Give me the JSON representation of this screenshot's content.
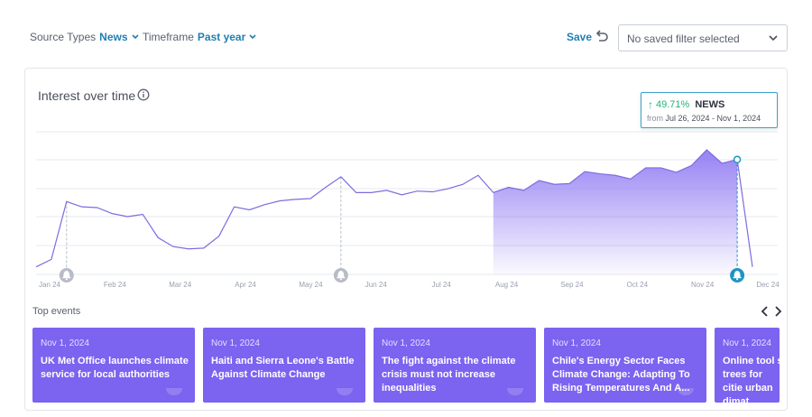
{
  "filters": {
    "source_types": {
      "label": "Source Types",
      "value": "News"
    },
    "timeframe": {
      "label": "Timeframe",
      "value": "Past year"
    }
  },
  "actions": {
    "save_label": "Save",
    "saved_filter_value": "No saved filter selected"
  },
  "card": {
    "title": "Interest over time"
  },
  "tooltip": {
    "change": "49.71%",
    "series": "NEWS",
    "from_label": "from",
    "date_range": "Jul 26, 2024 - Nov 1, 2024",
    "color": "#22b37a"
  },
  "colors": {
    "accent": "#1f7fb3",
    "line": "#7c6ce0",
    "area": "#8b73f2",
    "event_card": "#7c63f0",
    "alert_active": "#1f94c4",
    "alert_inactive": "#b7bcc6"
  },
  "chart_data": {
    "type": "line",
    "series": [
      {
        "name": "NEWS",
        "values": [
          10,
          20,
          97,
          90,
          89,
          81,
          77,
          80,
          49,
          37,
          34,
          35,
          51,
          90,
          86,
          93,
          98,
          100,
          101,
          116,
          130,
          109,
          109,
          112,
          106,
          111,
          110,
          114,
          120,
          132,
          109,
          116,
          112,
          125,
          120,
          121,
          137,
          134,
          132,
          127,
          142,
          142,
          136,
          145,
          166,
          148,
          153,
          10
        ]
      }
    ],
    "x_tick_labels": [
      "Jan 24",
      "Feb 24",
      "Mar 24",
      "Apr 24",
      "May 24",
      "Jun 24",
      "Jul 24",
      "Aug 24",
      "Sep 24",
      "Oct 24",
      "Nov 24",
      "Dec 24"
    ],
    "highlight_range": [
      "Jul 26, 2024",
      "Nov 1, 2024"
    ],
    "highlight_start_index": 30,
    "highlight_end_index": 46,
    "selected_index": 46,
    "alerts": [
      {
        "label": "Jan 24",
        "index": 2,
        "active": false
      },
      {
        "label": "May 24",
        "index": 20,
        "active": false
      },
      {
        "label": "Nov 24",
        "index": 46,
        "active": true
      }
    ],
    "grid": true,
    "ylim": [
      0,
      190
    ]
  },
  "events": {
    "heading": "Top events",
    "items": [
      {
        "date": "Nov 1, 2024",
        "title": "UK Met Office launches climate service for local authorities"
      },
      {
        "date": "Nov 1, 2024",
        "title": "Haiti and Sierra Leone's Battle Against Climate Change"
      },
      {
        "date": "Nov 1, 2024",
        "title": "The fight against the climate crisis must not increase inequalities"
      },
      {
        "date": "Nov 1, 2024",
        "title": "Chile's Energy Sector Faces Climate Change: Adapting To Rising Temperatures And A..."
      },
      {
        "date": "Nov 1, 2024",
        "title": "Online tool s trees for citie urban dimat"
      }
    ]
  }
}
